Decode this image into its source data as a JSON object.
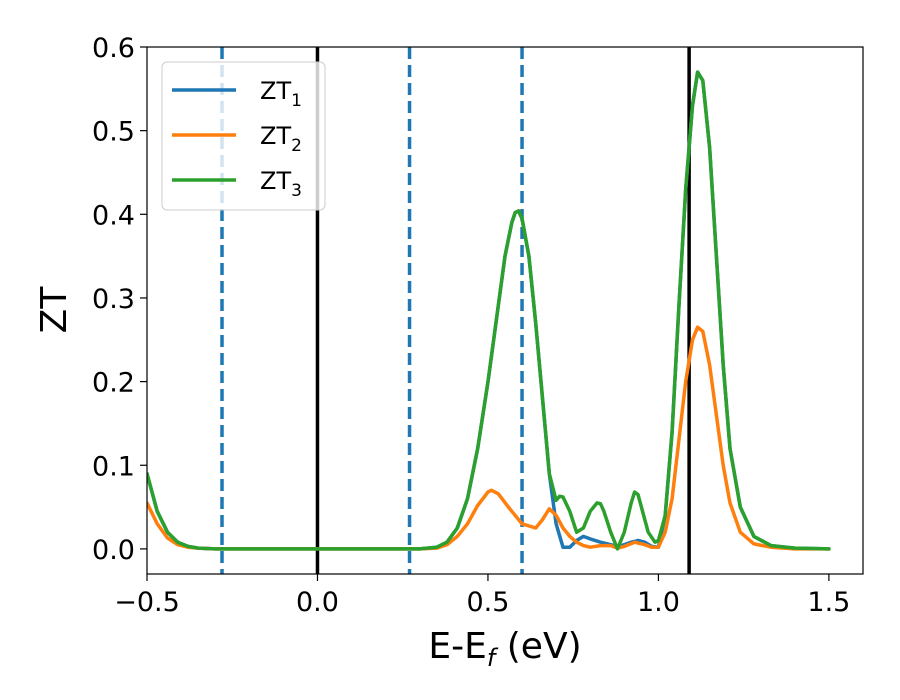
{
  "chart_data": {
    "type": "line",
    "xlabel": "E-E",
    "xlabel_sub": "f",
    "xlabel_unit": " (eV)",
    "ylabel": "ZT",
    "xlim": [
      -0.5,
      1.6
    ],
    "ylim": [
      -0.03,
      0.6
    ],
    "x_ticks": [
      -0.5,
      0.0,
      0.5,
      1.0,
      1.5
    ],
    "x_tick_labels": [
      "−0.5",
      "0.0",
      "0.5",
      "1.0",
      "1.5"
    ],
    "y_ticks": [
      0.0,
      0.1,
      0.2,
      0.3,
      0.4,
      0.5,
      0.6
    ],
    "y_tick_labels": [
      "0.0",
      "0.1",
      "0.2",
      "0.3",
      "0.4",
      "0.5",
      "0.6"
    ],
    "grid": false,
    "legend_position": "top-left",
    "series": [
      {
        "legend_base": "ZT",
        "legend_sub": "1",
        "color": "#1f77b4",
        "x": [
          -0.5,
          -0.47,
          -0.44,
          -0.41,
          -0.38,
          -0.35,
          -0.3,
          -0.2,
          0.0,
          0.2,
          0.3,
          0.35,
          0.38,
          0.41,
          0.44,
          0.47,
          0.5,
          0.53,
          0.55,
          0.57,
          0.58,
          0.59,
          0.6,
          0.62,
          0.64,
          0.66,
          0.68,
          0.7,
          0.72,
          0.74,
          0.76,
          0.78,
          0.8,
          0.83,
          0.86,
          0.88,
          0.9,
          0.92,
          0.94,
          0.96,
          0.98,
          1.0,
          1.02,
          1.04,
          1.06,
          1.08,
          1.1,
          1.115,
          1.13,
          1.15,
          1.17,
          1.19,
          1.21,
          1.24,
          1.28,
          1.33,
          1.4,
          1.5
        ],
        "y": [
          0.09,
          0.045,
          0.02,
          0.008,
          0.003,
          0.001,
          0.0,
          0.0,
          0.0,
          0.0,
          0.0,
          0.002,
          0.008,
          0.025,
          0.06,
          0.12,
          0.2,
          0.29,
          0.35,
          0.39,
          0.402,
          0.404,
          0.395,
          0.35,
          0.27,
          0.18,
          0.09,
          0.03,
          0.002,
          0.002,
          0.01,
          0.015,
          0.012,
          0.008,
          0.005,
          0.003,
          0.005,
          0.008,
          0.01,
          0.008,
          0.003,
          0.002,
          0.04,
          0.14,
          0.29,
          0.43,
          0.53,
          0.57,
          0.56,
          0.48,
          0.35,
          0.22,
          0.12,
          0.05,
          0.015,
          0.004,
          0.001,
          0.0
        ]
      },
      {
        "legend_base": "ZT",
        "legend_sub": "2",
        "color": "#ff7f0e",
        "x": [
          -0.5,
          -0.47,
          -0.44,
          -0.41,
          -0.38,
          -0.35,
          -0.3,
          -0.2,
          0.0,
          0.2,
          0.3,
          0.35,
          0.38,
          0.41,
          0.44,
          0.47,
          0.5,
          0.51,
          0.53,
          0.56,
          0.6,
          0.64,
          0.66,
          0.68,
          0.7,
          0.72,
          0.74,
          0.76,
          0.78,
          0.8,
          0.83,
          0.86,
          0.88,
          0.9,
          0.93,
          0.96,
          0.98,
          1.0,
          1.02,
          1.04,
          1.06,
          1.08,
          1.1,
          1.115,
          1.13,
          1.15,
          1.17,
          1.19,
          1.21,
          1.24,
          1.28,
          1.33,
          1.4,
          1.5
        ],
        "y": [
          0.055,
          0.03,
          0.013,
          0.005,
          0.002,
          0.001,
          0.0,
          0.0,
          0.0,
          0.0,
          0.0,
          0.001,
          0.005,
          0.015,
          0.03,
          0.052,
          0.068,
          0.07,
          0.066,
          0.05,
          0.03,
          0.025,
          0.035,
          0.048,
          0.04,
          0.025,
          0.015,
          0.008,
          0.004,
          0.002,
          0.004,
          0.004,
          0.001,
          0.003,
          0.008,
          0.005,
          0.002,
          0.002,
          0.02,
          0.06,
          0.13,
          0.2,
          0.25,
          0.265,
          0.26,
          0.22,
          0.16,
          0.1,
          0.055,
          0.02,
          0.006,
          0.002,
          0.0,
          0.0
        ]
      },
      {
        "legend_base": "ZT",
        "legend_sub": "3",
        "color": "#2ca02c",
        "x": [
          -0.5,
          -0.47,
          -0.44,
          -0.41,
          -0.38,
          -0.35,
          -0.3,
          -0.2,
          0.0,
          0.2,
          0.3,
          0.35,
          0.38,
          0.41,
          0.44,
          0.47,
          0.5,
          0.53,
          0.55,
          0.57,
          0.58,
          0.59,
          0.6,
          0.62,
          0.64,
          0.66,
          0.68,
          0.7,
          0.71,
          0.72,
          0.74,
          0.76,
          0.78,
          0.8,
          0.82,
          0.83,
          0.84,
          0.86,
          0.88,
          0.9,
          0.92,
          0.93,
          0.94,
          0.95,
          0.97,
          0.99,
          1.0,
          1.02,
          1.04,
          1.06,
          1.08,
          1.1,
          1.115,
          1.13,
          1.15,
          1.17,
          1.19,
          1.21,
          1.24,
          1.28,
          1.33,
          1.4,
          1.5
        ],
        "y": [
          0.09,
          0.045,
          0.02,
          0.008,
          0.003,
          0.001,
          0.0,
          0.0,
          0.0,
          0.0,
          0.0,
          0.002,
          0.008,
          0.025,
          0.06,
          0.12,
          0.2,
          0.29,
          0.35,
          0.39,
          0.402,
          0.404,
          0.395,
          0.35,
          0.27,
          0.18,
          0.09,
          0.058,
          0.063,
          0.062,
          0.045,
          0.02,
          0.025,
          0.045,
          0.055,
          0.054,
          0.045,
          0.02,
          0.0,
          0.02,
          0.055,
          0.068,
          0.065,
          0.05,
          0.02,
          0.008,
          0.01,
          0.04,
          0.14,
          0.29,
          0.43,
          0.53,
          0.57,
          0.56,
          0.48,
          0.35,
          0.22,
          0.12,
          0.05,
          0.015,
          0.004,
          0.001,
          0.0
        ]
      }
    ],
    "vlines": [
      {
        "x": -0.28,
        "style": "dashed",
        "color": "#1f77b4"
      },
      {
        "x": 0.0,
        "style": "solid",
        "color": "#000000"
      },
      {
        "x": 0.27,
        "style": "dashed",
        "color": "#1f77b4"
      },
      {
        "x": 0.6,
        "style": "dashed",
        "color": "#1f77b4"
      },
      {
        "x": 1.09,
        "style": "solid",
        "color": "#000000"
      }
    ]
  }
}
